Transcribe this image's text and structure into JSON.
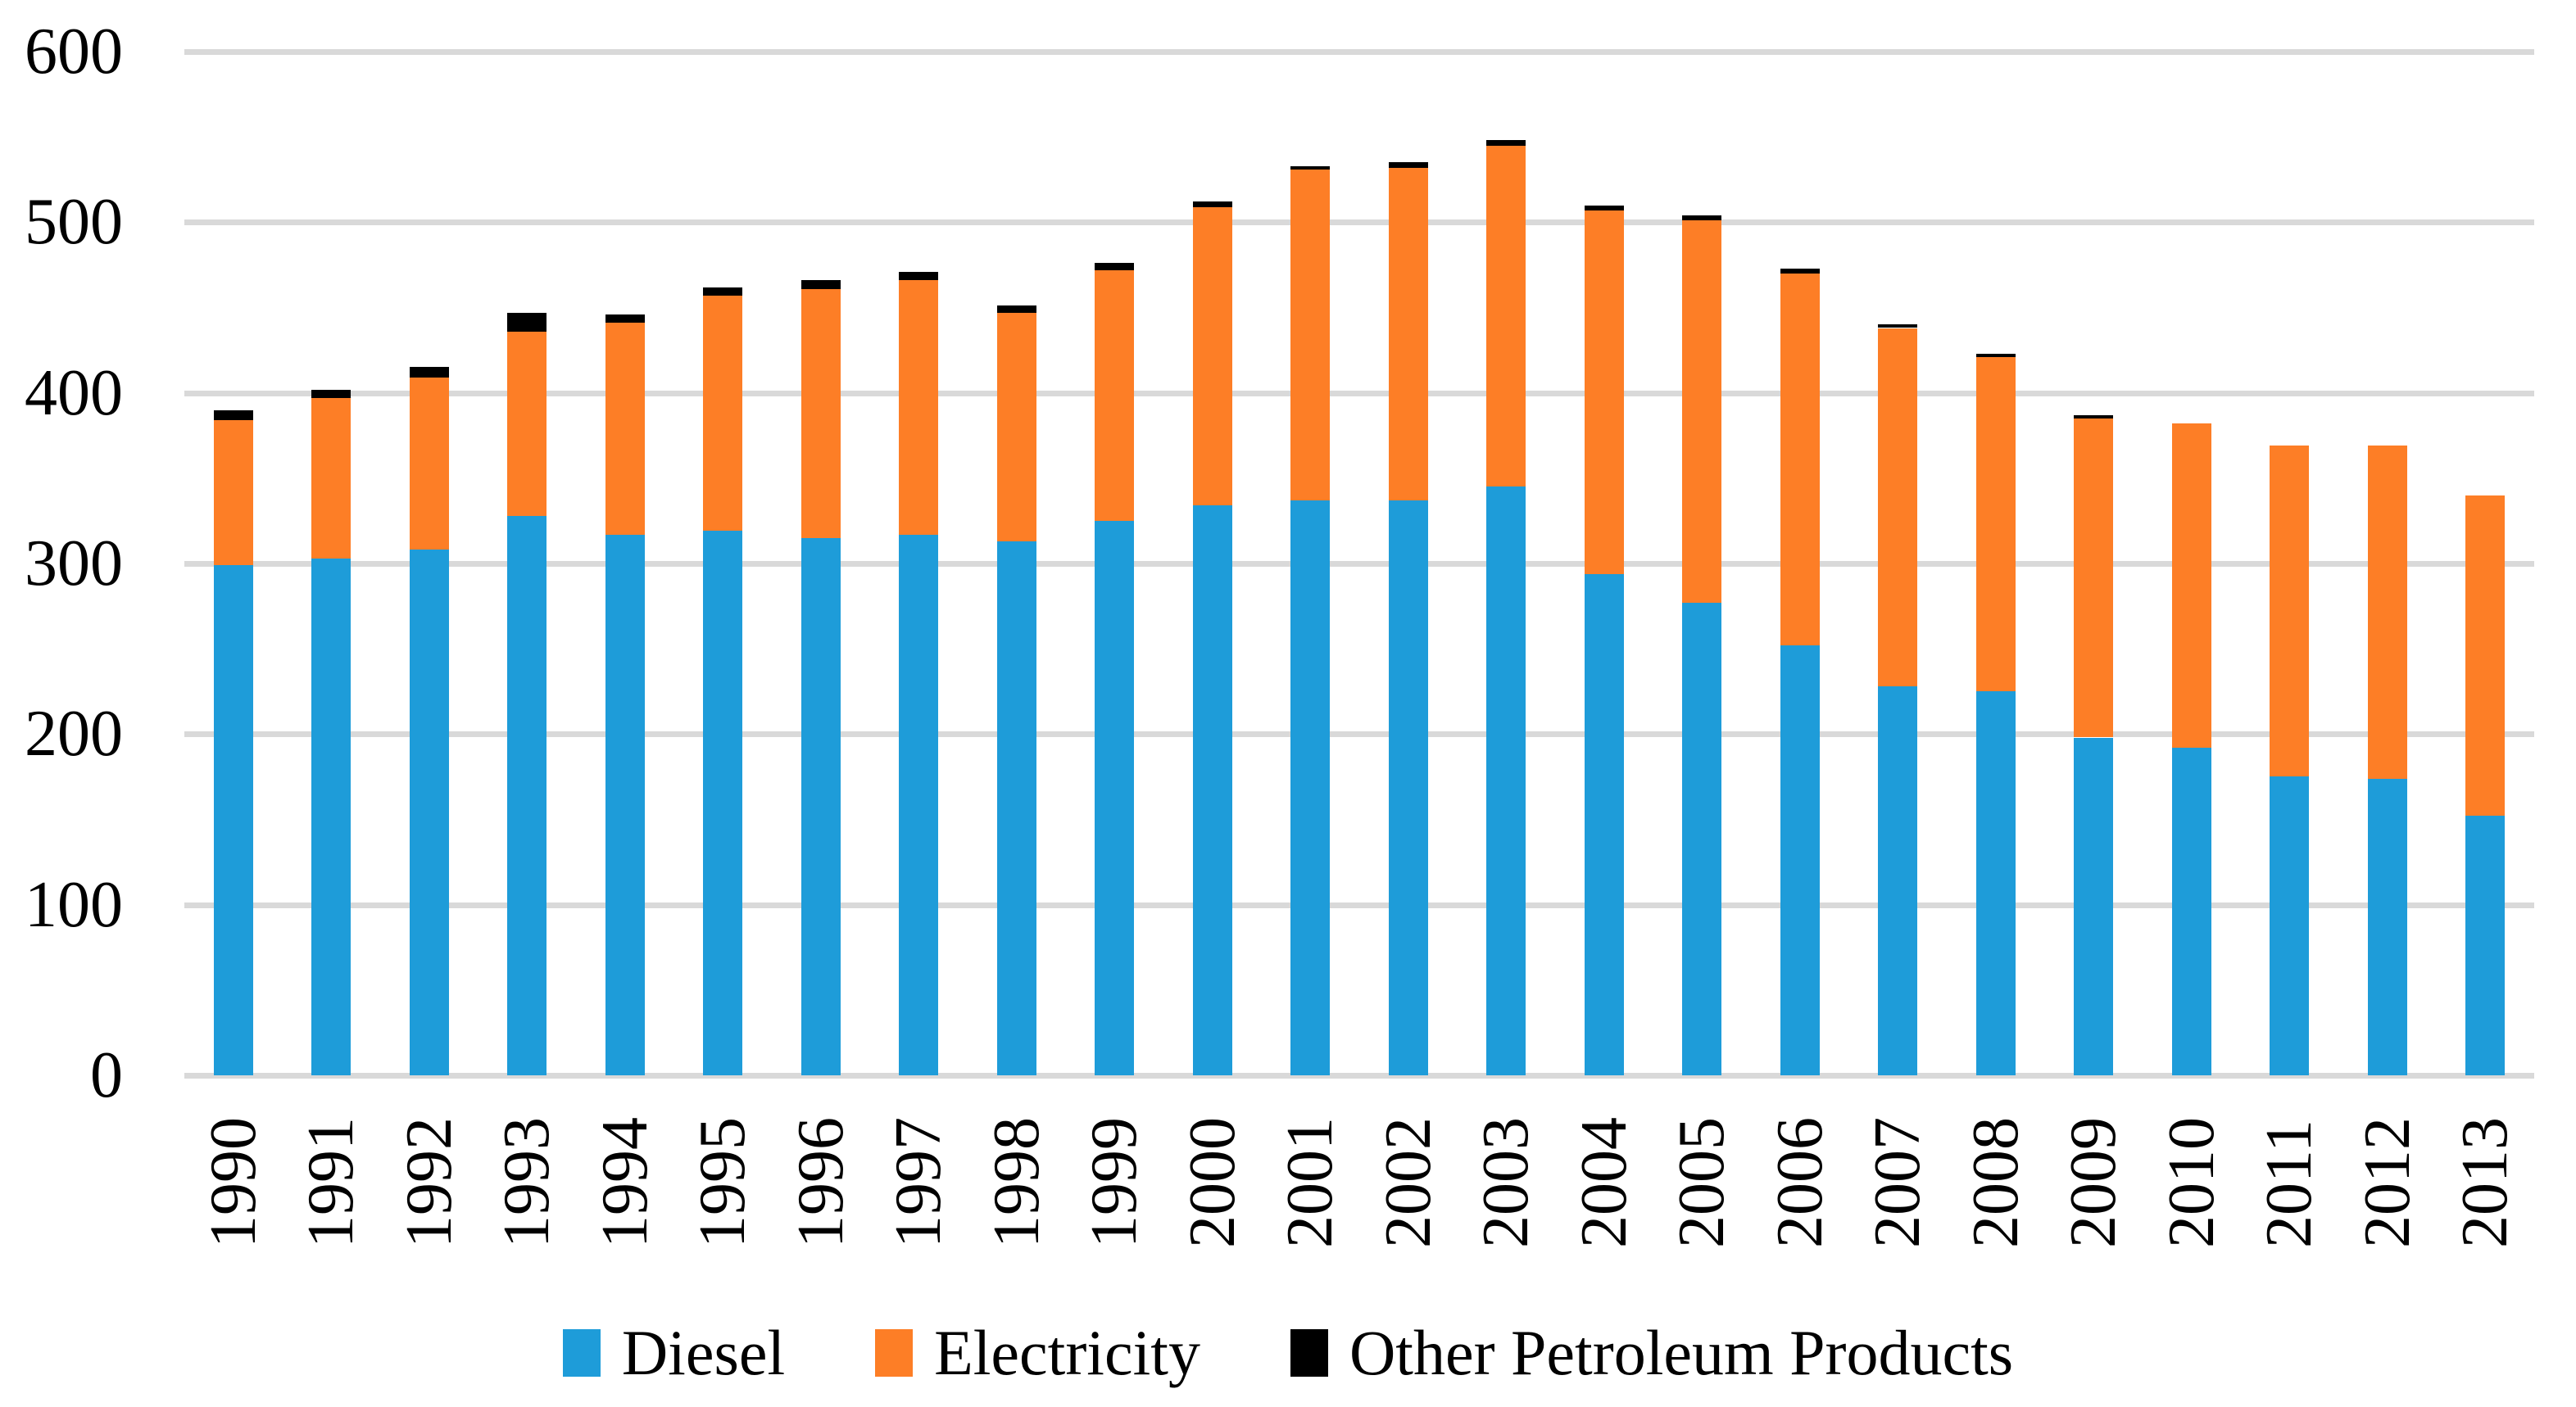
{
  "chart_data": {
    "type": "bar",
    "stacked": true,
    "title": "",
    "xlabel": "",
    "ylabel": "",
    "categories": [
      "1990",
      "1991",
      "1992",
      "1993",
      "1994",
      "1995",
      "1996",
      "1997",
      "1998",
      "1999",
      "2000",
      "2001",
      "2002",
      "2003",
      "2004",
      "2005",
      "2006",
      "2007",
      "2008",
      "2009",
      "2010",
      "2011",
      "2012",
      "2013"
    ],
    "series": [
      {
        "name": "Diesel",
        "color": "#1E9CD9",
        "values": [
          299,
          303,
          308,
          328,
          317,
          319,
          315,
          317,
          313,
          325,
          334,
          337,
          337,
          345,
          294,
          277,
          252,
          228,
          225,
          198,
          192,
          175,
          174,
          152
        ]
      },
      {
        "name": "Electricity",
        "color": "#FD7E26",
        "values": [
          85,
          94,
          101,
          108,
          124,
          138,
          146,
          149,
          134,
          147,
          175,
          194,
          195,
          200,
          213,
          224,
          218,
          210,
          196,
          187,
          190,
          194,
          195,
          188
        ]
      },
      {
        "name": "Other Petroleum Products",
        "color": "#000000",
        "values": [
          6,
          5,
          6,
          11,
          5,
          5,
          5,
          5,
          4,
          4,
          3,
          2,
          3,
          3,
          3,
          3,
          3,
          2,
          2,
          2,
          0,
          0,
          0,
          0
        ]
      }
    ],
    "ylim": [
      0,
      600
    ],
    "ytick_interval": 100,
    "yticks": [
      "0",
      "100",
      "200",
      "300",
      "400",
      "500",
      "600"
    ],
    "grid": "horizontal",
    "gridline_color": "#D9D9D9",
    "axis_line_color": "#D9D9D9",
    "legend_position": "bottom",
    "x_labels_rotated_degrees": -90
  }
}
